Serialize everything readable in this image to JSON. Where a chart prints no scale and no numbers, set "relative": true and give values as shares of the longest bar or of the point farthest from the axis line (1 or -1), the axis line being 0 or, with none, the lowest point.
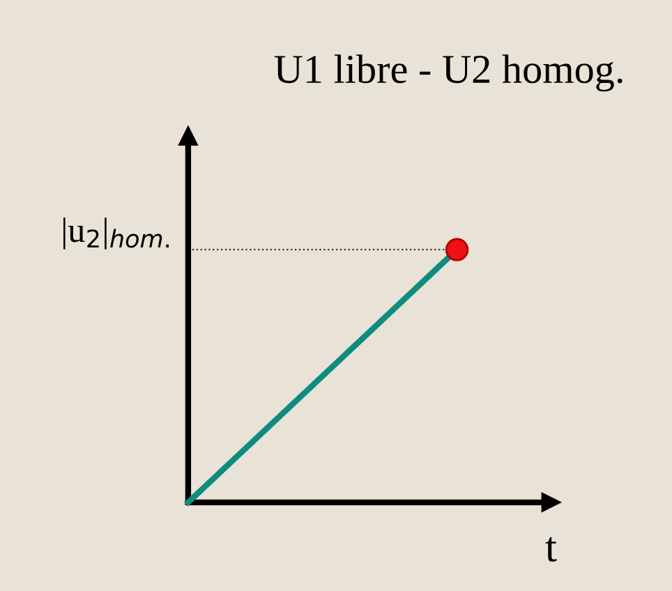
{
  "chart_data": {
    "type": "line",
    "title": "U1 libre - U2 homog.",
    "xlabel": "t",
    "relative": true,
    "categories": [
      null,
      null
    ],
    "series": [
      {
        "color": "#0e8c80",
        "values": [
          0,
          1
        ]
      }
    ],
    "ref_lines": [
      {
        "axis": "y",
        "value": 1,
        "label": "|u$_{2}$|$_{hom.}$",
        "color": "#333333",
        "line_style": "dotted"
      }
    ]
  }
}
